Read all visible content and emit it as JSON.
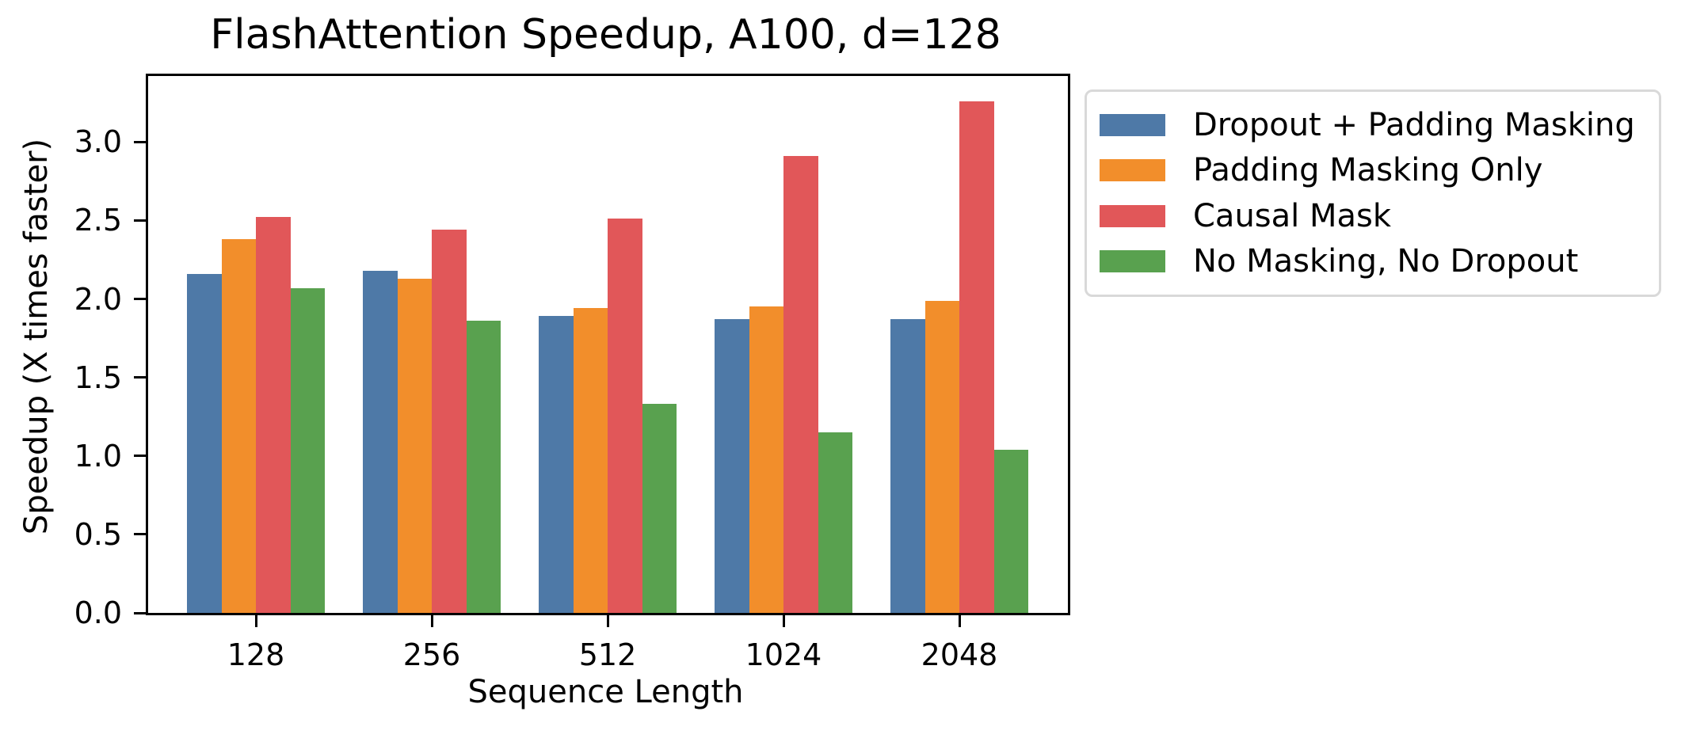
{
  "chart_data": {
    "type": "bar",
    "title": "FlashAttention Speedup, A100, d=128",
    "xlabel": "Sequence Length",
    "ylabel": "Speedup (X times faster)",
    "categories": [
      "128",
      "256",
      "512",
      "1024",
      "2048"
    ],
    "series": [
      {
        "name": "Dropout + Padding Masking",
        "color": "#4e79a7",
        "values": [
          2.16,
          2.18,
          1.89,
          1.87,
          1.87
        ]
      },
      {
        "name": "Padding Masking Only",
        "color": "#f28e2b",
        "values": [
          2.38,
          2.13,
          1.94,
          1.95,
          1.99
        ]
      },
      {
        "name": "Causal Mask",
        "color": "#e15759",
        "values": [
          2.52,
          2.44,
          2.51,
          2.91,
          3.26
        ]
      },
      {
        "name": "No Masking, No Dropout",
        "color": "#59a14f",
        "values": [
          2.07,
          1.86,
          1.33,
          1.15,
          1.04
        ]
      }
    ],
    "ylim": [
      0,
      3.42
    ],
    "yticks": [
      0.0,
      0.5,
      1.0,
      1.5,
      2.0,
      2.5,
      3.0
    ],
    "ytick_format_decimals": 1,
    "grid": false,
    "legend_position": "outside upper right",
    "colors": {
      "spine": "#000000",
      "text": "#000000",
      "legend_border": "#d9d9d9",
      "background": "#ffffff"
    }
  }
}
